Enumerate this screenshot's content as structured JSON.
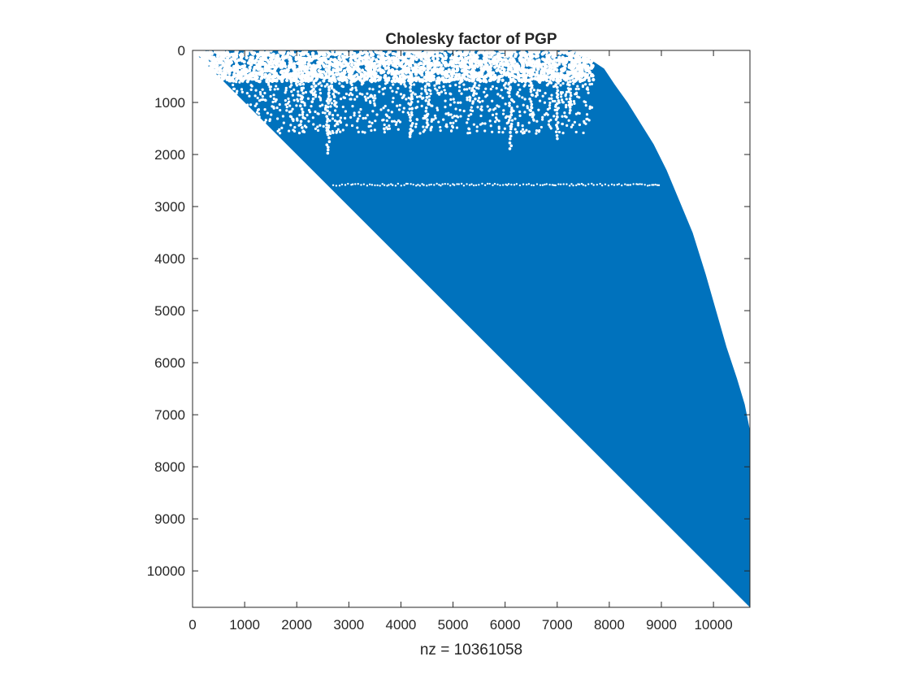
{
  "chart_data": {
    "type": "spy",
    "title": "Cholesky factor of PGP",
    "xlabel": "nz = 10361058",
    "ylabel": "",
    "n": 10700,
    "xlim": [
      0,
      10700
    ],
    "ylim": [
      10700,
      0
    ],
    "xticks": [
      0,
      1000,
      2000,
      3000,
      4000,
      5000,
      6000,
      7000,
      8000,
      9000,
      10000
    ],
    "yticks": [
      0,
      1000,
      2000,
      3000,
      4000,
      5000,
      6000,
      7000,
      8000,
      9000,
      10000
    ],
    "nz": 10361058,
    "marker_color": "#0072BD",
    "grid": false,
    "legend": "none",
    "structure": "upper-triangular",
    "diagonal": [
      [
        0,
        0
      ],
      [
        10700,
        10700
      ]
    ],
    "upper_envelope": [
      [
        0,
        0
      ],
      [
        7300,
        0
      ],
      [
        7600,
        150
      ],
      [
        7900,
        350
      ],
      [
        8100,
        650
      ],
      [
        8350,
        1000
      ],
      [
        8600,
        1400
      ],
      [
        8850,
        1800
      ],
      [
        9100,
        2300
      ],
      [
        9350,
        2900
      ],
      [
        9600,
        3500
      ],
      [
        9850,
        4300
      ],
      [
        10050,
        5000
      ],
      [
        10250,
        5700
      ],
      [
        10450,
        6300
      ],
      [
        10600,
        6800
      ],
      [
        10700,
        7300
      ],
      [
        10700,
        10700
      ]
    ],
    "sparse_region": {
      "row_range": [
        0,
        2600
      ],
      "col_range": [
        0,
        7700
      ]
    },
    "sparse_columns": [
      {
        "col": 2100,
        "to_row": 1600
      },
      {
        "col": 2300,
        "to_row": 1000
      },
      {
        "col": 2600,
        "to_row": 2000
      },
      {
        "col": 2700,
        "to_row": 900
      },
      {
        "col": 4200,
        "to_row": 1700
      },
      {
        "col": 4500,
        "to_row": 1500
      },
      {
        "col": 5400,
        "to_row": 1000
      },
      {
        "col": 6100,
        "to_row": 1900
      },
      {
        "col": 6500,
        "to_row": 1300
      },
      {
        "col": 7000,
        "to_row": 1700
      },
      {
        "col": 7250,
        "to_row": 1200
      }
    ],
    "dense_rows_in_sparse_region": [
      600,
      2600
    ]
  }
}
